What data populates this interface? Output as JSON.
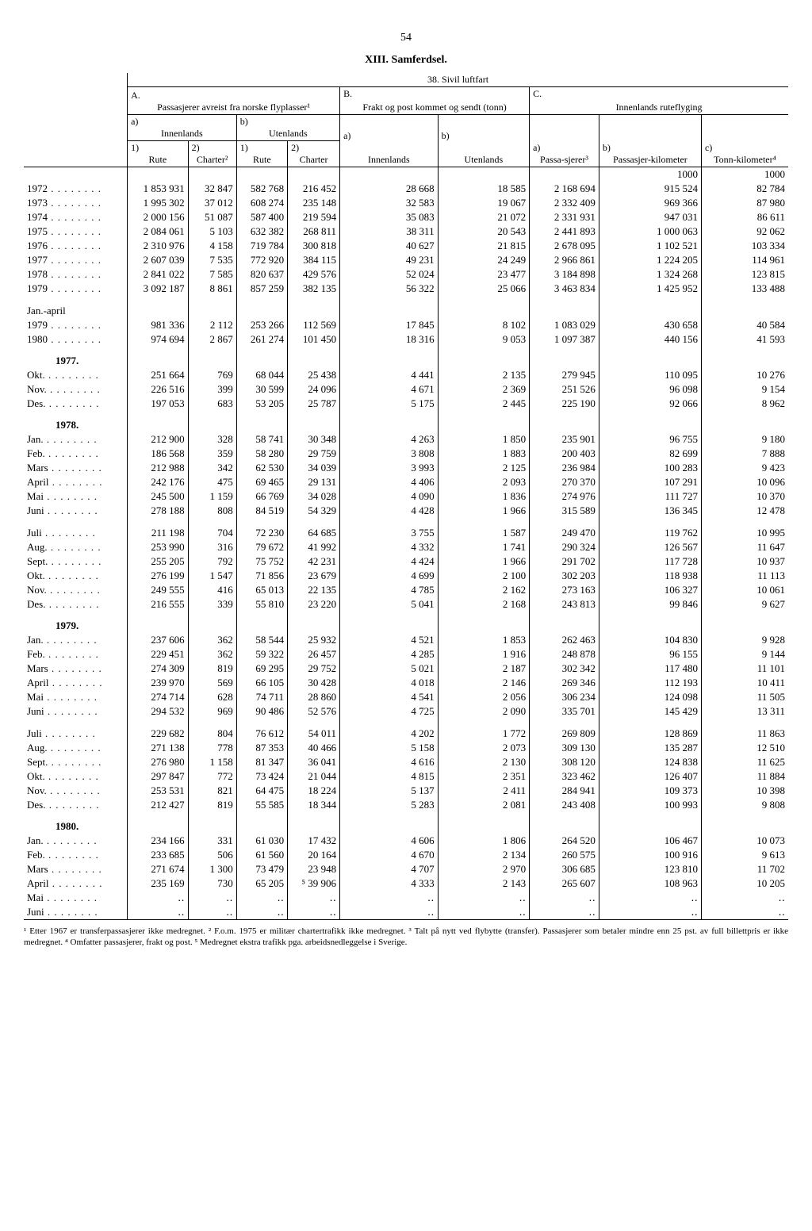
{
  "page_number": "54",
  "chapter": "XIII. Samferdsel.",
  "table_title": "38. Sivil luftfart",
  "header": {
    "A": "A.",
    "A_desc": "Passasjerer avreist fra norske flyplasser¹",
    "B": "B.",
    "B_desc": "Frakt og post kommet og sendt (tonn)",
    "C": "C.",
    "C_desc": "Innenlands ruteflyging",
    "a": "a)",
    "b": "b)",
    "c": "c)",
    "Innenlands": "Innenlands",
    "Utenlands": "Utenlands",
    "one": "1)",
    "two": "2)",
    "Rute": "Rute",
    "Charter2": "Charter²",
    "Charter": "Charter",
    "Passasjerer": "Passa-sjerer³",
    "Passasjerkm": "Passasjer-kilometer",
    "Tonnkm": "Tonn-kilometer⁴",
    "thousand": "1000"
  },
  "rows": [
    {
      "label": "1972",
      "d": [
        "1 853 931",
        "32 847",
        "582 768",
        "216 452",
        "28 668",
        "18 585",
        "2 168 694",
        "915 524",
        "82 784"
      ]
    },
    {
      "label": "1973",
      "d": [
        "1 995 302",
        "37 012",
        "608 274",
        "235 148",
        "32 583",
        "19 067",
        "2 332 409",
        "969 366",
        "87 980"
      ]
    },
    {
      "label": "1974",
      "d": [
        "2 000 156",
        "51 087",
        "587 400",
        "219 594",
        "35 083",
        "21 072",
        "2 331 931",
        "947 031",
        "86 611"
      ]
    },
    {
      "label": "1975",
      "d": [
        "2 084 061",
        "5 103",
        "632 382",
        "268 811",
        "38 311",
        "20 543",
        "2 441 893",
        "1 000 063",
        "92 062"
      ]
    },
    {
      "label": "1976",
      "d": [
        "2 310 976",
        "4 158",
        "719 784",
        "300 818",
        "40 627",
        "21 815",
        "2 678 095",
        "1 102 521",
        "103 334"
      ]
    },
    {
      "label": "1977",
      "d": [
        "2 607 039",
        "7 535",
        "772 920",
        "384 115",
        "49 231",
        "24 249",
        "2 966 861",
        "1 224 205",
        "114 961"
      ]
    },
    {
      "label": "1978",
      "d": [
        "2 841 022",
        "7 585",
        "820 637",
        "429 576",
        "52 024",
        "23 477",
        "3 184 898",
        "1 324 268",
        "123 815"
      ]
    },
    {
      "label": "1979",
      "d": [
        "3 092 187",
        "8 861",
        "857 259",
        "382 135",
        "56 322",
        "25 066",
        "3 463 834",
        "1 425 952",
        "133 488"
      ]
    }
  ],
  "janapril_hdr": "Jan.-april",
  "janapril": [
    {
      "label": "1979",
      "d": [
        "981 336",
        "2 112",
        "253 266",
        "112 569",
        "17 845",
        "8 102",
        "1 083 029",
        "430 658",
        "40 584"
      ]
    },
    {
      "label": "1980",
      "d": [
        "974 694",
        "2 867",
        "261 274",
        "101 450",
        "18 316",
        "9 053",
        "1 097 387",
        "440 156",
        "41 593"
      ]
    }
  ],
  "y1977_hdr": "1977.",
  "y1977": [
    {
      "label": "Okt.",
      "d": [
        "251 664",
        "769",
        "68 044",
        "25 438",
        "4 441",
        "2 135",
        "279 945",
        "110 095",
        "10 276"
      ]
    },
    {
      "label": "Nov.",
      "d": [
        "226 516",
        "399",
        "30 599",
        "24 096",
        "4 671",
        "2 369",
        "251 526",
        "96 098",
        "9 154"
      ]
    },
    {
      "label": "Des.",
      "d": [
        "197 053",
        "683",
        "53 205",
        "25 787",
        "5 175",
        "2 445",
        "225 190",
        "92 066",
        "8 962"
      ]
    }
  ],
  "y1978_hdr": "1978.",
  "y1978": [
    {
      "label": "Jan.",
      "d": [
        "212 900",
        "328",
        "58 741",
        "30 348",
        "4 263",
        "1 850",
        "235 901",
        "96 755",
        "9 180"
      ]
    },
    {
      "label": "Feb.",
      "d": [
        "186 568",
        "359",
        "58 280",
        "29 759",
        "3 808",
        "1 883",
        "200 403",
        "82 699",
        "7 888"
      ]
    },
    {
      "label": "Mars",
      "d": [
        "212 988",
        "342",
        "62 530",
        "34 039",
        "3 993",
        "2 125",
        "236 984",
        "100 283",
        "9 423"
      ]
    },
    {
      "label": "April",
      "d": [
        "242 176",
        "475",
        "69 465",
        "29 131",
        "4 406",
        "2 093",
        "270 370",
        "107 291",
        "10 096"
      ]
    },
    {
      "label": "Mai",
      "d": [
        "245 500",
        "1 159",
        "66 769",
        "34 028",
        "4 090",
        "1 836",
        "274 976",
        "111 727",
        "10 370"
      ]
    },
    {
      "label": "Juni",
      "d": [
        "278 188",
        "808",
        "84 519",
        "54 329",
        "4 428",
        "1 966",
        "315 589",
        "136 345",
        "12 478"
      ]
    }
  ],
  "y1978b": [
    {
      "label": "Juli",
      "d": [
        "211 198",
        "704",
        "72 230",
        "64 685",
        "3 755",
        "1 587",
        "249 470",
        "119 762",
        "10 995"
      ]
    },
    {
      "label": "Aug.",
      "d": [
        "253 990",
        "316",
        "79 672",
        "41 992",
        "4 332",
        "1 741",
        "290 324",
        "126 567",
        "11 647"
      ]
    },
    {
      "label": "Sept.",
      "d": [
        "255 205",
        "792",
        "75 752",
        "42 231",
        "4 424",
        "1 966",
        "291 702",
        "117 728",
        "10 937"
      ]
    },
    {
      "label": "Okt.",
      "d": [
        "276 199",
        "1 547",
        "71 856",
        "23 679",
        "4 699",
        "2 100",
        "302 203",
        "118 938",
        "11 113"
      ]
    },
    {
      "label": "Nov.",
      "d": [
        "249 555",
        "416",
        "65 013",
        "22 135",
        "4 785",
        "2 162",
        "273 163",
        "106 327",
        "10 061"
      ]
    },
    {
      "label": "Des.",
      "d": [
        "216 555",
        "339",
        "55 810",
        "23 220",
        "5 041",
        "2 168",
        "243 813",
        "99 846",
        "9 627"
      ]
    }
  ],
  "y1979_hdr": "1979.",
  "y1979": [
    {
      "label": "Jan.",
      "d": [
        "237 606",
        "362",
        "58 544",
        "25 932",
        "4 521",
        "1 853",
        "262 463",
        "104 830",
        "9 928"
      ]
    },
    {
      "label": "Feb.",
      "d": [
        "229 451",
        "362",
        "59 322",
        "26 457",
        "4 285",
        "1 916",
        "248 878",
        "96 155",
        "9 144"
      ]
    },
    {
      "label": "Mars",
      "d": [
        "274 309",
        "819",
        "69 295",
        "29 752",
        "5 021",
        "2 187",
        "302 342",
        "117 480",
        "11 101"
      ]
    },
    {
      "label": "April",
      "d": [
        "239 970",
        "569",
        "66 105",
        "30 428",
        "4 018",
        "2 146",
        "269 346",
        "112 193",
        "10 411"
      ]
    },
    {
      "label": "Mai",
      "d": [
        "274 714",
        "628",
        "74 711",
        "28 860",
        "4 541",
        "2 056",
        "306 234",
        "124 098",
        "11 505"
      ]
    },
    {
      "label": "Juni",
      "d": [
        "294 532",
        "969",
        "90 486",
        "52 576",
        "4 725",
        "2 090",
        "335 701",
        "145 429",
        "13 311"
      ]
    }
  ],
  "y1979b": [
    {
      "label": "Juli",
      "d": [
        "229 682",
        "804",
        "76 612",
        "54 011",
        "4 202",
        "1 772",
        "269 809",
        "128 869",
        "11 863"
      ]
    },
    {
      "label": "Aug.",
      "d": [
        "271 138",
        "778",
        "87 353",
        "40 466",
        "5 158",
        "2 073",
        "309 130",
        "135 287",
        "12 510"
      ]
    },
    {
      "label": "Sept.",
      "d": [
        "276 980",
        "1 158",
        "81 347",
        "36 041",
        "4 616",
        "2 130",
        "308 120",
        "124 838",
        "11 625"
      ]
    },
    {
      "label": "Okt.",
      "d": [
        "297 847",
        "772",
        "73 424",
        "21 044",
        "4 815",
        "2 351",
        "323 462",
        "126 407",
        "11 884"
      ]
    },
    {
      "label": "Nov.",
      "d": [
        "253 531",
        "821",
        "64 475",
        "18 224",
        "5 137",
        "2 411",
        "284 941",
        "109 373",
        "10 398"
      ]
    },
    {
      "label": "Des.",
      "d": [
        "212 427",
        "819",
        "55 585",
        "18 344",
        "5 283",
        "2 081",
        "243 408",
        "100 993",
        "9 808"
      ]
    }
  ],
  "y1980_hdr": "1980.",
  "y1980": [
    {
      "label": "Jan.",
      "d": [
        "234 166",
        "331",
        "61 030",
        "17 432",
        "4 606",
        "1 806",
        "264 520",
        "106 467",
        "10 073"
      ]
    },
    {
      "label": "Feb.",
      "d": [
        "233 685",
        "506",
        "61 560",
        "20 164",
        "4 670",
        "2 134",
        "260 575",
        "100 916",
        "9 613"
      ]
    },
    {
      "label": "Mars",
      "d": [
        "271 674",
        "1 300",
        "73 479",
        "23 948",
        "4 707",
        "2 970",
        "306 685",
        "123 810",
        "11 702"
      ]
    },
    {
      "label": "April",
      "d": [
        "235 169",
        "730",
        "65 205",
        "⁵ 39 906",
        "4 333",
        "2 143",
        "265 607",
        "108 963",
        "10 205"
      ]
    },
    {
      "label": "Mai",
      "d": [
        "‥",
        "‥",
        "‥",
        "‥",
        "‥",
        "‥",
        "‥",
        "‥",
        "‥"
      ]
    },
    {
      "label": "Juni",
      "d": [
        "‥",
        "‥",
        "‥",
        "‥",
        "‥",
        "‥",
        "‥",
        "‥",
        "‥"
      ]
    }
  ],
  "footnote": "¹ Etter 1967 er transferpassasjerer ikke medregnet. ² F.o.m. 1975 er militær chartertrafikk ikke medregnet. ³ Talt på nytt ved flybytte (transfer). Passasjerer som betaler mindre enn 25 pst. av full billettpris er ikke medregnet. ⁴ Omfatter passasjerer, frakt og post. ⁵ Medregnet ekstra trafikk pga. arbeidsnedleggelse i Sverige."
}
